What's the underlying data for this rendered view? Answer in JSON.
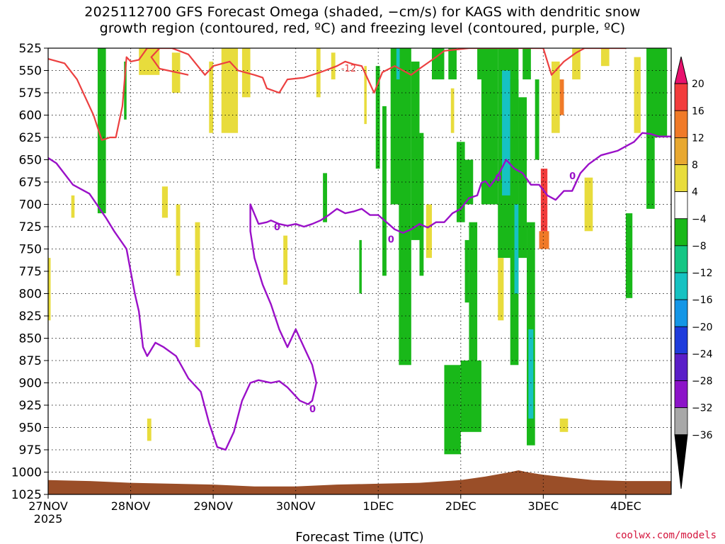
{
  "chart_data": {
    "type": "heatmap",
    "title_line1": "2025112700 GFS Forecast Omega (shaded, −cm/s) for KAGS with dendritic snow",
    "title_line2": "growth region (contoured, red, ºC) and freezing level (contoured, purple, ºC)",
    "xlabel": "Forecast Time (UTC)",
    "x_ticks": [
      "27NOV",
      "28NOV",
      "29NOV",
      "30NOV",
      "1DEC",
      "2DEC",
      "3DEC",
      "4DEC"
    ],
    "x_tick_sub": "2025",
    "y_ticks": [
      525,
      550,
      575,
      600,
      625,
      650,
      675,
      700,
      725,
      750,
      775,
      800,
      825,
      850,
      875,
      900,
      925,
      950,
      975,
      1000,
      1025
    ],
    "ylim": [
      1025,
      525
    ],
    "xlim_days": [
      0,
      7.55
    ],
    "grid": true,
    "colorbar": {
      "labels": [
        "20",
        "16",
        "12",
        "8",
        "4",
        "−4",
        "−8",
        "−12",
        "−16",
        "−20",
        "−24",
        "−28",
        "−32",
        "−36"
      ],
      "colors": [
        "#e8126e",
        "#f23c3c",
        "#f07a28",
        "#e8a830",
        "#e8dc3c",
        "#ffffff",
        "#19b819",
        "#15c684",
        "#16c2c2",
        "#1496e6",
        "#1e3cdc",
        "#5a1ec8",
        "#8c14c8",
        "#a8a8a8",
        "#000000"
      ]
    },
    "colors": {
      "terrain": "#9a4e28",
      "dgz_line": "#ec4040",
      "freezing_line": "#9a10c8",
      "yellow": "#e8dc3c",
      "green": "#19b819",
      "teal": "#16c2c2",
      "orange": "#f07a28",
      "red": "#f23c3c"
    },
    "dgz_labels": [
      "-12"
    ],
    "freezing_label": "0",
    "dgz_contour": [
      [
        0.0,
        537
      ],
      [
        0.2,
        542
      ],
      [
        0.35,
        560
      ],
      [
        0.55,
        600
      ],
      [
        0.65,
        628
      ],
      [
        0.75,
        625
      ],
      [
        0.82,
        625
      ],
      [
        0.9,
        590
      ],
      [
        0.95,
        535
      ],
      [
        1.0,
        540
      ],
      [
        1.1,
        538
      ],
      [
        1.2,
        525
      ],
      [
        1.5,
        525
      ],
      [
        1.7,
        532
      ],
      [
        1.9,
        555
      ],
      [
        2.0,
        545
      ],
      [
        2.2,
        540
      ],
      [
        2.3,
        550
      ],
      [
        2.5,
        555
      ],
      [
        2.6,
        558
      ],
      [
        2.65,
        570
      ],
      [
        2.8,
        575
      ],
      [
        2.9,
        560
      ],
      [
        3.1,
        558
      ],
      [
        3.3,
        552
      ],
      [
        3.5,
        545
      ],
      [
        3.6,
        540
      ],
      [
        3.7,
        543
      ],
      [
        3.8,
        545
      ],
      [
        3.9,
        565
      ],
      [
        3.95,
        575
      ],
      [
        4.05,
        552
      ],
      [
        4.2,
        545
      ],
      [
        4.4,
        555
      ],
      [
        4.5,
        548
      ],
      [
        4.7,
        535
      ],
      [
        4.8,
        528
      ],
      [
        5.1,
        525
      ],
      [
        5.5,
        525
      ],
      [
        5.8,
        525
      ],
      [
        6.0,
        525
      ],
      [
        6.1,
        555
      ],
      [
        6.25,
        540
      ],
      [
        6.4,
        530
      ],
      [
        6.5,
        525
      ],
      [
        6.9,
        525
      ],
      [
        7.0,
        525
      ]
    ],
    "dgz_contour2": [
      [
        1.7,
        555
      ],
      [
        1.35,
        548
      ],
      [
        1.25,
        535
      ],
      [
        1.35,
        525
      ]
    ],
    "freezing_contour": [
      [
        0.0,
        648
      ],
      [
        0.1,
        654
      ],
      [
        0.3,
        678
      ],
      [
        0.5,
        688
      ],
      [
        0.7,
        715
      ],
      [
        0.8,
        730
      ],
      [
        0.95,
        750
      ],
      [
        1.05,
        800
      ],
      [
        1.1,
        820
      ],
      [
        1.15,
        860
      ],
      [
        1.2,
        870
      ],
      [
        1.3,
        855
      ],
      [
        1.4,
        860
      ],
      [
        1.55,
        870
      ],
      [
        1.7,
        895
      ],
      [
        1.85,
        910
      ],
      [
        1.95,
        945
      ],
      [
        2.05,
        972
      ],
      [
        2.15,
        975
      ],
      [
        2.25,
        955
      ],
      [
        2.35,
        920
      ],
      [
        2.45,
        900
      ],
      [
        2.55,
        897
      ],
      [
        2.7,
        900
      ],
      [
        2.8,
        898
      ],
      [
        2.9,
        905
      ],
      [
        3.05,
        920
      ],
      [
        3.15,
        924
      ],
      [
        3.2,
        920
      ],
      [
        3.25,
        900
      ],
      [
        3.2,
        880
      ],
      [
        3.1,
        860
      ],
      [
        3.0,
        840
      ],
      [
        2.9,
        860
      ],
      [
        2.8,
        840
      ],
      [
        2.7,
        812
      ],
      [
        2.6,
        790
      ],
      [
        2.5,
        760
      ],
      [
        2.45,
        730
      ],
      [
        2.45,
        700
      ],
      [
        2.55,
        722
      ],
      [
        2.65,
        720
      ],
      [
        2.7,
        718
      ],
      [
        2.8,
        722
      ],
      [
        2.9,
        724
      ],
      [
        3.0,
        722
      ],
      [
        3.1,
        725
      ],
      [
        3.2,
        722
      ],
      [
        3.3,
        718
      ],
      [
        3.4,
        712
      ],
      [
        3.5,
        705
      ],
      [
        3.6,
        710
      ],
      [
        3.7,
        708
      ],
      [
        3.8,
        705
      ],
      [
        3.9,
        712
      ],
      [
        4.0,
        712
      ],
      [
        4.1,
        720
      ],
      [
        4.2,
        728
      ],
      [
        4.3,
        732
      ],
      [
        4.4,
        728
      ],
      [
        4.5,
        722
      ],
      [
        4.6,
        726
      ],
      [
        4.7,
        720
      ],
      [
        4.8,
        720
      ],
      [
        4.9,
        710
      ],
      [
        5.0,
        705
      ],
      [
        5.1,
        693
      ],
      [
        5.2,
        690
      ],
      [
        5.25,
        676
      ],
      [
        5.3,
        674
      ],
      [
        5.35,
        680
      ],
      [
        5.45,
        668
      ],
      [
        5.55,
        650
      ],
      [
        5.65,
        660
      ],
      [
        5.75,
        665
      ],
      [
        5.85,
        678
      ],
      [
        5.95,
        678
      ],
      [
        6.05,
        690
      ],
      [
        6.15,
        695
      ],
      [
        6.25,
        685
      ],
      [
        6.35,
        685
      ],
      [
        6.45,
        665
      ],
      [
        6.55,
        655
      ],
      [
        6.7,
        645
      ],
      [
        6.9,
        640
      ],
      [
        7.1,
        630
      ],
      [
        7.2,
        620
      ],
      [
        7.3,
        621
      ],
      [
        7.4,
        624
      ],
      [
        7.55,
        624
      ]
    ],
    "omega_patches": [
      {
        "c": "yellow",
        "x0": 0.0,
        "x1": 0.03,
        "p0": 760,
        "p1": 830
      },
      {
        "c": "yellow",
        "x0": 0.28,
        "x1": 0.32,
        "p0": 690,
        "p1": 715
      },
      {
        "c": "green",
        "x0": 0.6,
        "x1": 0.7,
        "p0": 525,
        "p1": 710
      },
      {
        "c": "green",
        "x0": 0.92,
        "x1": 0.95,
        "p0": 540,
        "p1": 605
      },
      {
        "c": "yellow",
        "x0": 1.1,
        "x1": 1.35,
        "p0": 525,
        "p1": 555
      },
      {
        "c": "yellow",
        "x0": 1.5,
        "x1": 1.6,
        "p0": 530,
        "p1": 575
      },
      {
        "c": "yellow",
        "x0": 1.2,
        "x1": 1.25,
        "p0": 940,
        "p1": 965
      },
      {
        "c": "yellow",
        "x0": 1.38,
        "x1": 1.45,
        "p0": 680,
        "p1": 715
      },
      {
        "c": "yellow",
        "x0": 1.55,
        "x1": 1.6,
        "p0": 700,
        "p1": 780
      },
      {
        "c": "yellow",
        "x0": 1.78,
        "x1": 1.84,
        "p0": 720,
        "p1": 860
      },
      {
        "c": "yellow",
        "x0": 1.95,
        "x1": 2.0,
        "p0": 540,
        "p1": 620
      },
      {
        "c": "yellow",
        "x0": 2.1,
        "x1": 2.3,
        "p0": 525,
        "p1": 620
      },
      {
        "c": "yellow",
        "x0": 2.35,
        "x1": 2.45,
        "p0": 525,
        "p1": 580
      },
      {
        "c": "yellow",
        "x0": 2.85,
        "x1": 2.9,
        "p0": 735,
        "p1": 790
      },
      {
        "c": "yellow",
        "x0": 3.25,
        "x1": 3.3,
        "p0": 525,
        "p1": 580
      },
      {
        "c": "yellow",
        "x0": 3.43,
        "x1": 3.48,
        "p0": 530,
        "p1": 560
      },
      {
        "c": "green",
        "x0": 3.33,
        "x1": 3.38,
        "p0": 665,
        "p1": 720
      },
      {
        "c": "green",
        "x0": 3.77,
        "x1": 3.8,
        "p0": 740,
        "p1": 800
      },
      {
        "c": "yellow",
        "x0": 3.83,
        "x1": 3.86,
        "p0": 545,
        "p1": 610
      },
      {
        "c": "green",
        "x0": 3.97,
        "x1": 4.02,
        "p0": 545,
        "p1": 660
      },
      {
        "c": "green",
        "x0": 4.05,
        "x1": 4.1,
        "p0": 590,
        "p1": 780
      },
      {
        "c": "green",
        "x0": 4.15,
        "x1": 4.3,
        "p0": 525,
        "p1": 700
      },
      {
        "c": "green",
        "x0": 4.25,
        "x1": 4.4,
        "p0": 525,
        "p1": 880
      },
      {
        "c": "green",
        "x0": 4.4,
        "x1": 4.5,
        "p0": 540,
        "p1": 740
      },
      {
        "c": "green",
        "x0": 4.5,
        "x1": 4.55,
        "p0": 620,
        "p1": 780
      },
      {
        "c": "teal",
        "x0": 4.22,
        "x1": 4.26,
        "p0": 525,
        "p1": 560
      },
      {
        "c": "yellow",
        "x0": 4.58,
        "x1": 4.65,
        "p0": 700,
        "p1": 760
      },
      {
        "c": "green",
        "x0": 4.65,
        "x1": 4.8,
        "p0": 525,
        "p1": 560
      },
      {
        "c": "green",
        "x0": 4.85,
        "x1": 4.95,
        "p0": 525,
        "p1": 560
      },
      {
        "c": "yellow",
        "x0": 4.88,
        "x1": 4.92,
        "p0": 570,
        "p1": 620
      },
      {
        "c": "green",
        "x0": 4.95,
        "x1": 5.05,
        "p0": 630,
        "p1": 720
      },
      {
        "c": "green",
        "x0": 5.2,
        "x1": 5.3,
        "p0": 525,
        "p1": 560
      },
      {
        "c": "green",
        "x0": 5.0,
        "x1": 5.15,
        "p0": 650,
        "p1": 700
      },
      {
        "c": "green",
        "x0": 5.05,
        "x1": 5.1,
        "p0": 740,
        "p1": 810
      },
      {
        "c": "green",
        "x0": 5.1,
        "x1": 5.2,
        "p0": 720,
        "p1": 900
      },
      {
        "c": "green",
        "x0": 4.8,
        "x1": 5.0,
        "p0": 880,
        "p1": 980
      },
      {
        "c": "green",
        "x0": 5.0,
        "x1": 5.25,
        "p0": 875,
        "p1": 955
      },
      {
        "c": "green",
        "x0": 5.25,
        "x1": 5.45,
        "p0": 525,
        "p1": 700
      },
      {
        "c": "green",
        "x0": 5.45,
        "x1": 5.7,
        "p0": 525,
        "p1": 760
      },
      {
        "c": "teal",
        "x0": 5.5,
        "x1": 5.6,
        "p0": 550,
        "p1": 690
      },
      {
        "c": "green",
        "x0": 5.6,
        "x1": 5.7,
        "p0": 560,
        "p1": 880
      },
      {
        "c": "teal",
        "x0": 5.65,
        "x1": 5.7,
        "p0": 700,
        "p1": 800
      },
      {
        "c": "yellow",
        "x0": 5.45,
        "x1": 5.52,
        "p0": 760,
        "p1": 830
      },
      {
        "c": "green",
        "x0": 5.7,
        "x1": 5.8,
        "p0": 580,
        "p1": 760
      },
      {
        "c": "green",
        "x0": 5.75,
        "x1": 5.85,
        "p0": 525,
        "p1": 560
      },
      {
        "c": "green",
        "x0": 5.8,
        "x1": 5.9,
        "p0": 720,
        "p1": 970
      },
      {
        "c": "teal",
        "x0": 5.82,
        "x1": 5.88,
        "p0": 840,
        "p1": 940
      },
      {
        "c": "green",
        "x0": 5.9,
        "x1": 5.95,
        "p0": 560,
        "p1": 650
      },
      {
        "c": "red",
        "x0": 5.97,
        "x1": 6.05,
        "p0": 660,
        "p1": 735
      },
      {
        "c": "orange",
        "x0": 5.95,
        "x1": 6.07,
        "p0": 730,
        "p1": 750
      },
      {
        "c": "orange",
        "x0": 6.15,
        "x1": 6.25,
        "p0": 560,
        "p1": 600
      },
      {
        "c": "yellow",
        "x0": 6.1,
        "x1": 6.2,
        "p0": 540,
        "p1": 620
      },
      {
        "c": "yellow",
        "x0": 6.35,
        "x1": 6.45,
        "p0": 525,
        "p1": 560
      },
      {
        "c": "yellow",
        "x0": 6.2,
        "x1": 6.3,
        "p0": 940,
        "p1": 955
      },
      {
        "c": "yellow",
        "x0": 6.5,
        "x1": 6.6,
        "p0": 670,
        "p1": 730
      },
      {
        "c": "yellow",
        "x0": 6.7,
        "x1": 6.8,
        "p0": 525,
        "p1": 545
      },
      {
        "c": "green",
        "x0": 7.0,
        "x1": 7.08,
        "p0": 710,
        "p1": 805
      },
      {
        "c": "yellow",
        "x0": 7.1,
        "x1": 7.18,
        "p0": 535,
        "p1": 620
      },
      {
        "c": "green",
        "x0": 7.25,
        "x1": 7.5,
        "p0": 525,
        "p1": 625
      },
      {
        "c": "green",
        "x0": 7.25,
        "x1": 7.35,
        "p0": 625,
        "p1": 705
      }
    ],
    "terrain": [
      [
        0.0,
        1009
      ],
      [
        0.5,
        1010
      ],
      [
        1.0,
        1012
      ],
      [
        1.5,
        1013
      ],
      [
        2.0,
        1014
      ],
      [
        2.5,
        1016
      ],
      [
        3.0,
        1016
      ],
      [
        3.5,
        1014
      ],
      [
        4.0,
        1013
      ],
      [
        4.5,
        1012
      ],
      [
        5.0,
        1009
      ],
      [
        5.3,
        1005
      ],
      [
        5.6,
        1000
      ],
      [
        5.7,
        998
      ],
      [
        5.8,
        1000
      ],
      [
        6.0,
        1003
      ],
      [
        6.3,
        1006
      ],
      [
        6.6,
        1009
      ],
      [
        7.0,
        1010
      ],
      [
        7.55,
        1010
      ]
    ]
  },
  "footer": {
    "credit": "coolwx.com/models"
  }
}
